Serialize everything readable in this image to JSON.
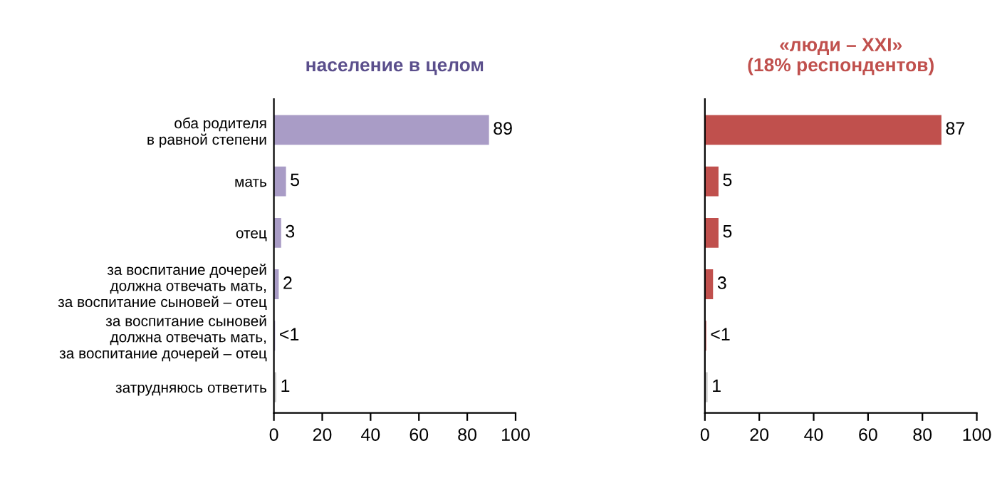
{
  "chart_data": [
    {
      "type": "bar",
      "orientation": "horizontal",
      "title": "население в целом",
      "categories": [
        "оба родителя\nв равной степени",
        "мать",
        "отец",
        "за воспитание дочерей\nдолжна отвечать мать,\nза воспитание сыновей – отец",
        "за воспитание сыновей\nдолжна отвечать мать,\nза воспитание дочерей – отец",
        "затрудняюсь ответить"
      ],
      "values": [
        89,
        5,
        3,
        2,
        0.5,
        1
      ],
      "value_labels": [
        "89",
        "5",
        "3",
        "2",
        "<1",
        "1"
      ],
      "colors": [
        "#a99cc6",
        "#a99cc6",
        "#a99cc6",
        "#a99cc6",
        "#a99cc6",
        "#c8c8c8"
      ],
      "xlim": [
        0,
        100
      ],
      "xticks": [
        0,
        20,
        40,
        60,
        80,
        100
      ],
      "grid": false
    },
    {
      "type": "bar",
      "orientation": "horizontal",
      "title": "«люди – XXI»\n(18% респондентов)",
      "categories": [
        null,
        null,
        null,
        null,
        null,
        null
      ],
      "values": [
        87,
        5,
        5,
        3,
        0.5,
        1
      ],
      "value_labels": [
        "87",
        "5",
        "5",
        "3",
        "<1",
        "1"
      ],
      "colors": [
        "#c0504d",
        "#c0504d",
        "#c0504d",
        "#c0504d",
        "#c0504d",
        "#c8c8c8"
      ],
      "xlim": [
        0,
        100
      ],
      "xticks": [
        0,
        20,
        40,
        60,
        80,
        100
      ],
      "tick_labels": "x",
      "grid": false
    }
  ]
}
